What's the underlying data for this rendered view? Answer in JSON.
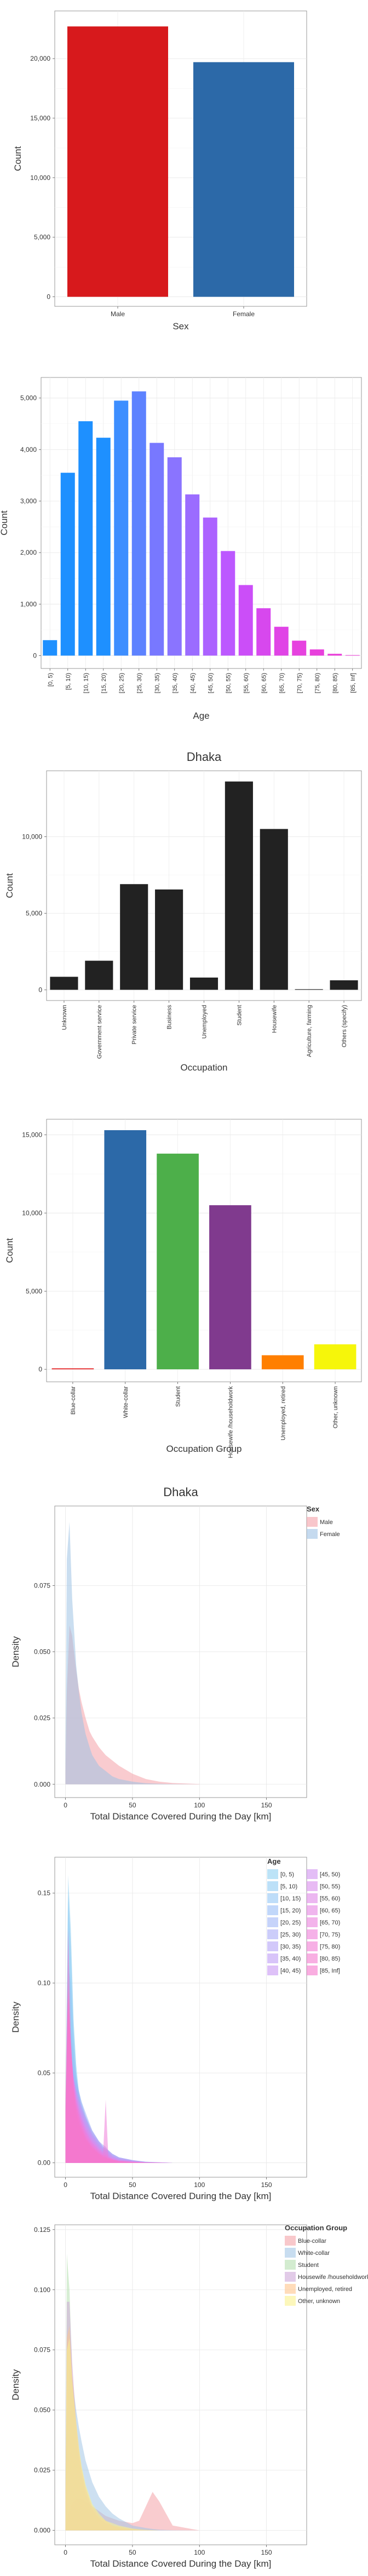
{
  "chart_data": [
    {
      "type": "bar",
      "title": "",
      "xlabel": "Sex",
      "ylabel": "Count",
      "categories": [
        "Male",
        "Female"
      ],
      "values": [
        22700,
        19700
      ],
      "colors": [
        "#D7191C",
        "#2C69A8"
      ],
      "ylim": [
        -800,
        24000
      ],
      "yticks": [
        0,
        5000,
        10000,
        15000,
        20000
      ],
      "ytick_labels": [
        "0",
        "5,000",
        "10,000",
        "15,000",
        "20,000"
      ],
      "xtick_rotation": 0,
      "grid": true
    },
    {
      "type": "bar",
      "title": "",
      "xlabel": "Age",
      "ylabel": "Count",
      "categories": [
        "[0, 5)",
        "[5, 10)",
        "[10, 15)",
        "[15, 20)",
        "[20, 25)",
        "[25, 30)",
        "[30, 35)",
        "[35, 40)",
        "[40, 45)",
        "[45, 50)",
        "[50, 55)",
        "[55, 60)",
        "[60, 65)",
        "[65, 70)",
        "[70, 75)",
        "[75, 80)",
        "[80, 85)",
        "[85, Inf]"
      ],
      "values": [
        300,
        3550,
        4550,
        4230,
        4950,
        5130,
        4130,
        3850,
        3130,
        2680,
        2030,
        1370,
        920,
        560,
        290,
        120,
        35,
        10
      ],
      "colors": [
        "#1E90FF",
        "#1E90FF",
        "#1E90FF",
        "#1E90FF",
        "#3D8EFF",
        "#5D82FF",
        "#7878FF",
        "#8A74FF",
        "#9B6CFF",
        "#AC62FF",
        "#BC58FF",
        "#CB4EF8",
        "#D748EE",
        "#E044E6",
        "#E642DF",
        "#E840DC",
        "#EA40DA",
        "#EC40D8"
      ],
      "ylim": [
        -250,
        5400
      ],
      "yticks": [
        0,
        1000,
        2000,
        3000,
        4000,
        5000
      ],
      "ytick_labels": [
        "0",
        "1,000",
        "2,000",
        "3,000",
        "4,000",
        "5,000"
      ],
      "xtick_rotation": -90,
      "grid": true
    },
    {
      "type": "bar",
      "title": "Dhaka",
      "xlabel": "Occupation",
      "ylabel": "Count",
      "categories": [
        "Unknown",
        "Government service",
        "Private service",
        "Business",
        "Unemployed",
        "Student",
        "Housewife",
        "Agriculture, farming",
        "Others (specify)"
      ],
      "values": [
        850,
        1900,
        6900,
        6550,
        800,
        13600,
        10500,
        40,
        620
      ],
      "colors": [
        "#222222",
        "#222222",
        "#222222",
        "#222222",
        "#222222",
        "#222222",
        "#222222",
        "#222222",
        "#222222"
      ],
      "ylim": [
        -700,
        14300
      ],
      "yticks": [
        0,
        5000,
        10000
      ],
      "ytick_labels": [
        "0",
        "5,000",
        "10,000"
      ],
      "xtick_rotation": -90,
      "grid": true
    },
    {
      "type": "bar",
      "title": "",
      "xlabel": "Occupation Group",
      "ylabel": "Count",
      "categories": [
        "Blue-collar",
        "White-collar",
        "Student",
        "Housewife /householdwork",
        "Unemployed, retired",
        "Other, unknown"
      ],
      "values": [
        60,
        15300,
        13800,
        10500,
        900,
        1600
      ],
      "colors": [
        "#E41A1C",
        "#2C69A8",
        "#4DAF4A",
        "#803A8E",
        "#FF7F00",
        "#F6F60A"
      ],
      "ylim": [
        -800,
        16000
      ],
      "yticks": [
        0,
        5000,
        10000,
        15000
      ],
      "ytick_labels": [
        "0",
        "5,000",
        "10,000",
        "15,000"
      ],
      "xtick_rotation": -90,
      "grid": true
    },
    {
      "type": "area",
      "title": "Dhaka",
      "xlabel": "Total Distance Covered During the Day [km]",
      "ylabel": "Density",
      "xlim": [
        -8,
        180
      ],
      "ylim": [
        -0.005,
        0.105
      ],
      "xticks": [
        0,
        50,
        100,
        150
      ],
      "yticks": [
        0,
        0.025,
        0.05,
        0.075
      ],
      "ytick_labels": [
        "0.000",
        "0.025",
        "0.050",
        "0.075"
      ],
      "legend": {
        "title": "Sex",
        "placement": "top-right"
      },
      "x": [
        0,
        1,
        3,
        5,
        8,
        10,
        12,
        15,
        18,
        20,
        25,
        30,
        35,
        40,
        50,
        60,
        70,
        80,
        100
      ],
      "series": [
        {
          "name": "Male",
          "color": "#F4A0A8",
          "values": [
            0.004,
            0.035,
            0.06,
            0.056,
            0.043,
            0.036,
            0.031,
            0.025,
            0.02,
            0.018,
            0.014,
            0.011,
            0.009,
            0.007,
            0.004,
            0.002,
            0.001,
            0.0005,
            0.0001
          ]
        },
        {
          "name": "Female",
          "color": "#9FC2E4",
          "values": [
            0.012,
            0.085,
            0.099,
            0.07,
            0.045,
            0.035,
            0.027,
            0.019,
            0.014,
            0.011,
            0.007,
            0.005,
            0.003,
            0.002,
            0.001,
            0.0004,
            0.0002,
            0.0001,
            0
          ]
        }
      ],
      "grid": true
    },
    {
      "type": "area",
      "title": "",
      "xlabel": "Total Distance Covered During the Day [km]",
      "ylabel": "Density",
      "xlim": [
        -8,
        180
      ],
      "ylim": [
        -0.008,
        0.17
      ],
      "xticks": [
        0,
        50,
        100,
        150
      ],
      "yticks": [
        0,
        0.05,
        0.1,
        0.15
      ],
      "ytick_labels": [
        "0.00",
        "0.05",
        "0.10",
        "0.15"
      ],
      "legend": {
        "title": "Age",
        "placement": "top-right"
      },
      "x": [
        0,
        2,
        4,
        6,
        8,
        10,
        12,
        15,
        18,
        20,
        25,
        28,
        30,
        32,
        35,
        40,
        50,
        60,
        80
      ],
      "series": [
        {
          "name": "[0, 5)",
          "color": "#8FD0F2",
          "values": [
            0.03,
            0.16,
            0.13,
            0.08,
            0.055,
            0.04,
            0.03,
            0.02,
            0.013,
            0.01,
            0.006,
            0.004,
            0.003,
            0.002,
            0.0015,
            0.001,
            0.0005,
            0.0002,
            0
          ]
        },
        {
          "name": "[5, 10)",
          "color": "#8FCCF4",
          "values": [
            0.03,
            0.15,
            0.12,
            0.075,
            0.05,
            0.035,
            0.025,
            0.017,
            0.012,
            0.009,
            0.005,
            0.003,
            0.0025,
            0.002,
            0.0012,
            0.0008,
            0.0004,
            0.0001,
            0
          ]
        },
        {
          "name": "[10, 15)",
          "color": "#92C6F5",
          "values": [
            0.025,
            0.11,
            0.1,
            0.07,
            0.05,
            0.038,
            0.03,
            0.021,
            0.015,
            0.012,
            0.007,
            0.005,
            0.004,
            0.003,
            0.002,
            0.001,
            0.0005,
            0.0002,
            0
          ]
        },
        {
          "name": "[15, 20)",
          "color": "#98BDF6",
          "values": [
            0.02,
            0.075,
            0.075,
            0.06,
            0.048,
            0.04,
            0.034,
            0.026,
            0.02,
            0.016,
            0.01,
            0.008,
            0.007,
            0.006,
            0.004,
            0.002,
            0.001,
            0.0004,
            0
          ]
        },
        {
          "name": "[20, 25)",
          "color": "#A0B5F6",
          "values": [
            0.015,
            0.055,
            0.06,
            0.052,
            0.045,
            0.04,
            0.034,
            0.028,
            0.022,
            0.018,
            0.012,
            0.009,
            0.008,
            0.007,
            0.005,
            0.003,
            0.0015,
            0.0006,
            0
          ]
        },
        {
          "name": "[25, 30)",
          "color": "#AAACF6",
          "values": [
            0.012,
            0.05,
            0.055,
            0.048,
            0.042,
            0.037,
            0.032,
            0.026,
            0.021,
            0.018,
            0.012,
            0.01,
            0.009,
            0.007,
            0.005,
            0.003,
            0.0015,
            0.0006,
            0
          ]
        },
        {
          "name": "[30, 35)",
          "color": "#B4A4F6",
          "values": [
            0.012,
            0.05,
            0.054,
            0.047,
            0.041,
            0.036,
            0.031,
            0.025,
            0.02,
            0.017,
            0.012,
            0.009,
            0.008,
            0.007,
            0.005,
            0.003,
            0.0015,
            0.0005,
            0
          ]
        },
        {
          "name": "[35, 40)",
          "color": "#BE9DF5",
          "values": [
            0.013,
            0.055,
            0.056,
            0.047,
            0.04,
            0.035,
            0.03,
            0.024,
            0.019,
            0.016,
            0.011,
            0.008,
            0.007,
            0.006,
            0.004,
            0.0025,
            0.0012,
            0.0004,
            0
          ]
        },
        {
          "name": "[40, 45)",
          "color": "#C897F3",
          "values": [
            0.014,
            0.06,
            0.058,
            0.047,
            0.039,
            0.034,
            0.029,
            0.023,
            0.018,
            0.015,
            0.01,
            0.008,
            0.007,
            0.006,
            0.004,
            0.002,
            0.001,
            0.0004,
            0
          ]
        },
        {
          "name": "[45, 50)",
          "color": "#D191F0",
          "values": [
            0.015,
            0.065,
            0.06,
            0.047,
            0.038,
            0.032,
            0.027,
            0.021,
            0.017,
            0.014,
            0.009,
            0.007,
            0.006,
            0.005,
            0.003,
            0.002,
            0.001,
            0.0003,
            0
          ]
        },
        {
          "name": "[50, 55)",
          "color": "#D98CEC",
          "values": [
            0.017,
            0.07,
            0.062,
            0.047,
            0.037,
            0.031,
            0.026,
            0.02,
            0.016,
            0.013,
            0.008,
            0.006,
            0.005,
            0.004,
            0.003,
            0.0015,
            0.0008,
            0.0003,
            0
          ]
        },
        {
          "name": "[55, 60)",
          "color": "#E087E8",
          "values": [
            0.018,
            0.075,
            0.064,
            0.047,
            0.036,
            0.03,
            0.025,
            0.019,
            0.014,
            0.012,
            0.008,
            0.006,
            0.005,
            0.004,
            0.0025,
            0.0012,
            0.0006,
            0.0002,
            0
          ]
        },
        {
          "name": "[60, 65)",
          "color": "#E683E3",
          "values": [
            0.02,
            0.08,
            0.065,
            0.046,
            0.035,
            0.029,
            0.024,
            0.018,
            0.014,
            0.011,
            0.007,
            0.005,
            0.004,
            0.003,
            0.002,
            0.001,
            0.0005,
            0.0002,
            0
          ]
        },
        {
          "name": "[65, 70)",
          "color": "#EB80DE",
          "values": [
            0.022,
            0.085,
            0.066,
            0.045,
            0.034,
            0.028,
            0.023,
            0.017,
            0.013,
            0.011,
            0.007,
            0.005,
            0.004,
            0.003,
            0.002,
            0.001,
            0.0005,
            0.0002,
            0
          ]
        },
        {
          "name": "[70, 75)",
          "color": "#EF7DD9",
          "values": [
            0.025,
            0.09,
            0.066,
            0.044,
            0.033,
            0.027,
            0.022,
            0.016,
            0.012,
            0.01,
            0.006,
            0.004,
            0.035,
            0.003,
            0.002,
            0.001,
            0.0005,
            0.0002,
            0
          ]
        },
        {
          "name": "[75, 80)",
          "color": "#F27BD4",
          "values": [
            0.028,
            0.095,
            0.065,
            0.042,
            0.032,
            0.026,
            0.021,
            0.015,
            0.011,
            0.009,
            0.006,
            0.004,
            0.004,
            0.003,
            0.002,
            0.001,
            0.0005,
            0.0002,
            0
          ]
        },
        {
          "name": "[80, 85)",
          "color": "#F479CF",
          "values": [
            0.03,
            0.1,
            0.064,
            0.041,
            0.031,
            0.025,
            0.02,
            0.014,
            0.011,
            0.009,
            0.005,
            0.004,
            0.003,
            0.0025,
            0.0015,
            0.001,
            0.0005,
            0.0001,
            0
          ]
        },
        {
          "name": "[85, Inf]",
          "color": "#F577CB",
          "values": [
            0.035,
            0.13,
            0.07,
            0.04,
            0.028,
            0.022,
            0.018,
            0.013,
            0.01,
            0.008,
            0.005,
            0.003,
            0.003,
            0.002,
            0.0015,
            0.0008,
            0.0004,
            0.0001,
            0
          ]
        }
      ],
      "grid": true
    },
    {
      "type": "area",
      "title": "",
      "xlabel": "Total Distance Covered During the Day [km]",
      "ylabel": "Density",
      "xlim": [
        -8,
        180
      ],
      "ylim": [
        -0.006,
        0.127
      ],
      "xticks": [
        0,
        50,
        100,
        150
      ],
      "yticks": [
        0,
        0.025,
        0.05,
        0.075,
        0.1,
        0.125
      ],
      "ytick_labels": [
        "0.000",
        "0.025",
        "0.050",
        "0.075",
        "0.100",
        "0.125"
      ],
      "legend": {
        "title": "Occupation Group",
        "placement": "top-right"
      },
      "x": [
        0,
        1,
        3,
        5,
        8,
        10,
        12,
        15,
        20,
        25,
        30,
        35,
        40,
        50,
        55,
        60,
        65,
        70,
        80,
        100
      ],
      "series": [
        {
          "name": "Blue-collar",
          "color": "#F4A3A8",
          "values": [
            0.001,
            0.004,
            0.008,
            0.011,
            0.013,
            0.013,
            0.013,
            0.012,
            0.01,
            0.008,
            0.006,
            0.005,
            0.004,
            0.003,
            0.004,
            0.01,
            0.016,
            0.012,
            0.002,
            0
          ]
        },
        {
          "name": "White-collar",
          "color": "#A4C6E6",
          "values": [
            0.005,
            0.045,
            0.07,
            0.063,
            0.05,
            0.043,
            0.037,
            0.029,
            0.02,
            0.014,
            0.01,
            0.007,
            0.005,
            0.002,
            0.0015,
            0.001,
            0.0006,
            0.0003,
            0.0001,
            0
          ]
        },
        {
          "name": "Student",
          "color": "#B6E0B0",
          "values": [
            0.02,
            0.115,
            0.1,
            0.065,
            0.04,
            0.03,
            0.022,
            0.015,
            0.008,
            0.005,
            0.003,
            0.002,
            0.0012,
            0.0005,
            0.0003,
            0.0002,
            0.0001,
            0,
            0,
            0
          ]
        },
        {
          "name": "Housewife /householdwork",
          "color": "#CFA9D9",
          "values": [
            0.015,
            0.095,
            0.095,
            0.07,
            0.045,
            0.033,
            0.025,
            0.017,
            0.009,
            0.005,
            0.003,
            0.002,
            0.001,
            0.0004,
            0.0002,
            0.0001,
            0,
            0,
            0,
            0
          ]
        },
        {
          "name": "Unemployed, retired",
          "color": "#FFC48C",
          "values": [
            0.012,
            0.08,
            0.085,
            0.065,
            0.045,
            0.034,
            0.026,
            0.018,
            0.01,
            0.006,
            0.004,
            0.002,
            0.0015,
            0.0005,
            0.0003,
            0.0002,
            0.0001,
            0,
            0,
            0
          ]
        },
        {
          "name": "Other, unknown",
          "color": "#FAF28E",
          "values": [
            0.012,
            0.075,
            0.08,
            0.062,
            0.045,
            0.035,
            0.027,
            0.019,
            0.011,
            0.007,
            0.004,
            0.003,
            0.002,
            0.0008,
            0.0004,
            0.0002,
            0.0001,
            0,
            0,
            0
          ]
        }
      ],
      "grid": true
    }
  ]
}
